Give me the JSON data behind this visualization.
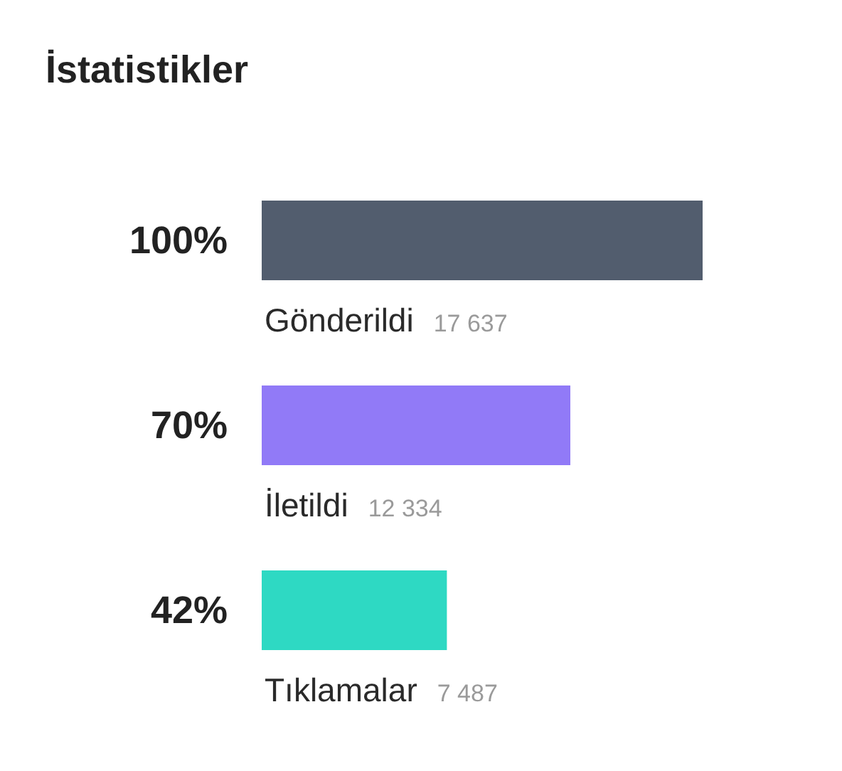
{
  "chart_data": {
    "type": "bar",
    "orientation": "horizontal",
    "title": "İstatistikler",
    "categories": [
      "Gönderildi",
      "İletildi",
      "Tıklamalar"
    ],
    "values": [
      100,
      70,
      42
    ],
    "colors": [
      "#525d6e",
      "#917af7",
      "#2ed9c3"
    ],
    "value_labels": [
      "100%",
      "70%",
      "42%"
    ],
    "annotations": [
      "17 637",
      "12 334",
      "7 487"
    ]
  }
}
